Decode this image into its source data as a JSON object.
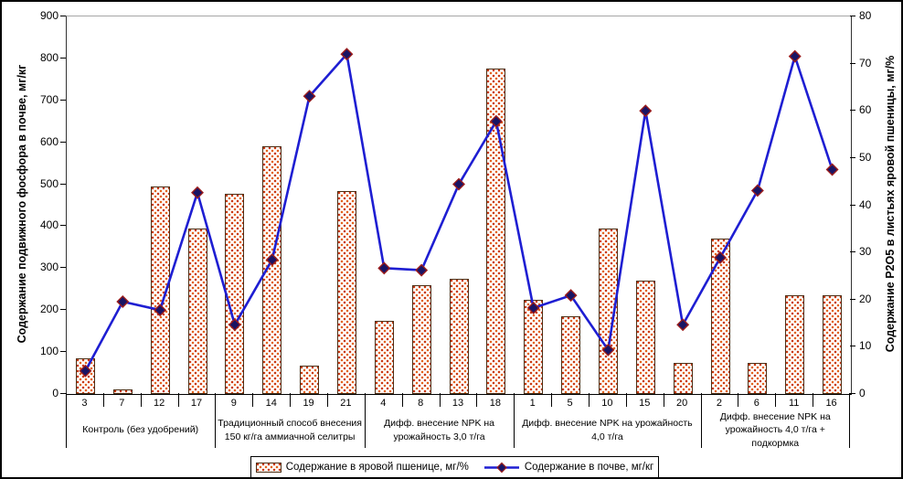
{
  "chart_data": {
    "type": "bar+line combo",
    "categories": [
      "3",
      "7",
      "12",
      "17",
      "9",
      "14",
      "19",
      "21",
      "4",
      "8",
      "13",
      "18",
      "1",
      "5",
      "10",
      "15",
      "20",
      "2",
      "6",
      "11",
      "16"
    ],
    "groups": [
      {
        "label": "Контроль (без удобрений)",
        "count": 4
      },
      {
        "label": "Традиционный способ внесения 150 кг/га аммиачной селитры",
        "count": 4
      },
      {
        "label": "Дифф. внесение NPK на урожайность 3,0 т/га",
        "count": 4
      },
      {
        "label": "Дифф. внесение NPK на урожайность 4,0 т/га",
        "count": 5
      },
      {
        "label": "Дифф. внесение NPK на урожайность 4,0 т/га + подкормка",
        "count": 4
      }
    ],
    "series": [
      {
        "name": "Содержание в яровой пшенице, мг/%",
        "type": "bar",
        "axis": "right",
        "values": [
          7.5,
          1,
          44,
          35,
          42.5,
          52.5,
          6,
          43,
          15.5,
          23,
          24.5,
          69,
          20,
          16.5,
          35,
          24,
          6.5,
          33,
          6.5,
          21,
          21
        ]
      },
      {
        "name": "Содержание в почве, мг/кг",
        "type": "line",
        "axis": "left",
        "values": [
          55,
          220,
          200,
          480,
          165,
          320,
          710,
          810,
          300,
          295,
          500,
          650,
          205,
          235,
          105,
          675,
          165,
          325,
          485,
          805,
          535
        ]
      }
    ],
    "left_axis": {
      "title": "Содержание подвижного фосфора в почве, мг/кг",
      "min": 0,
      "max": 900,
      "step": 100
    },
    "right_axis": {
      "title": "Содержание Р2О5 в листьях яровой пшеницы, мг/%",
      "min": 0,
      "max": 80,
      "step": 10
    },
    "legend_position": "bottom",
    "grid": false
  },
  "colors": {
    "line": "#1e1ed2",
    "marker_fill": "#191464",
    "marker_stroke": "#9b1c1c",
    "bar_dot1": "#e2621b",
    "bar_dot2": "#c93a12",
    "bar_border": "#4d3016",
    "axis": "#000000",
    "plot_top_border": "#a6a6a6"
  }
}
